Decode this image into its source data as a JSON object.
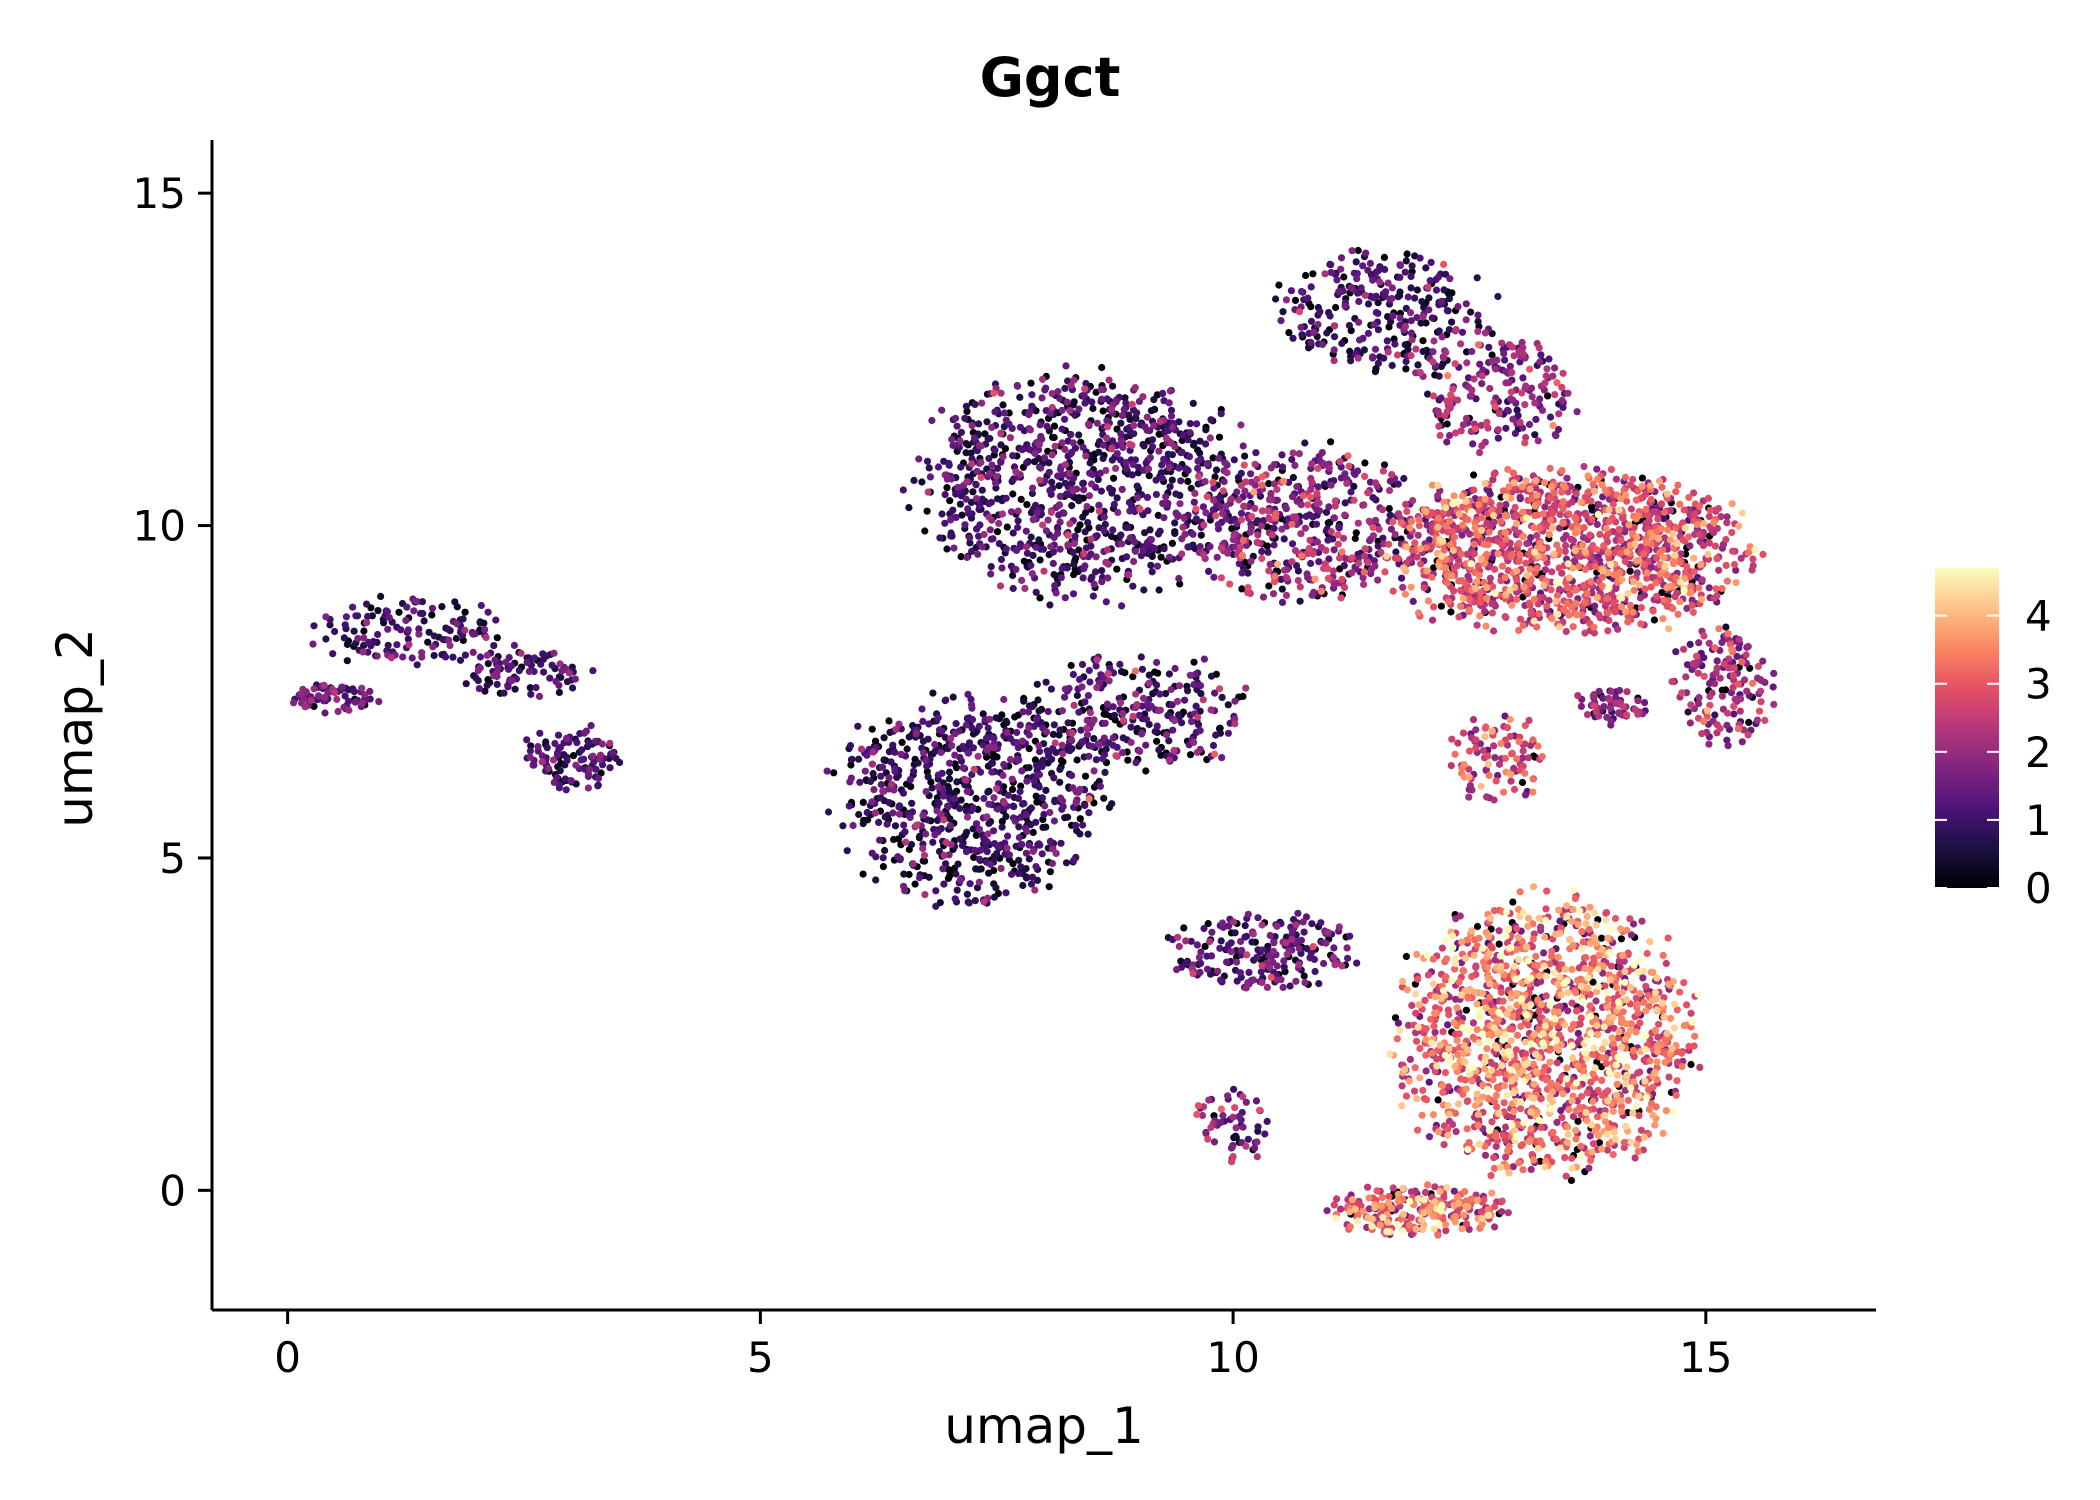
{
  "chart_data": {
    "type": "scatter",
    "title": "Ggct",
    "xlabel": "umap_1",
    "ylabel": "umap_2",
    "xlim": [
      -0.8,
      16.8
    ],
    "ylim": [
      -1.8,
      15.8
    ],
    "xticks": [
      0,
      5,
      10,
      15
    ],
    "yticks": [
      0,
      5,
      10,
      15
    ],
    "grid": false,
    "legend_position": "right",
    "colorbar": {
      "min": 0,
      "max": 4.7,
      "ticks": [
        0,
        1,
        2,
        3,
        4
      ],
      "colormap": "magma",
      "colors": [
        "#000004",
        "#1c1044",
        "#4f127b",
        "#812581",
        "#b5367a",
        "#e55064",
        "#fb8761",
        "#fec287",
        "#fcfdbf"
      ]
    },
    "clusters": [
      {
        "name": "left strip",
        "cx": 1.3,
        "cy": 8.4,
        "rx": 1.0,
        "ry": 0.55,
        "n": 140,
        "mean": 1.0,
        "sd": 0.55
      },
      {
        "name": "left tail",
        "cx": 0.5,
        "cy": 7.4,
        "rx": 0.45,
        "ry": 0.25,
        "n": 70,
        "mean": 1.4,
        "sd": 0.5
      },
      {
        "name": "left lobe",
        "cx": 3.0,
        "cy": 6.5,
        "rx": 0.55,
        "ry": 0.5,
        "n": 110,
        "mean": 1.0,
        "sd": 0.5
      },
      {
        "name": "left bridge",
        "cx": 2.5,
        "cy": 7.8,
        "rx": 0.7,
        "ry": 0.4,
        "n": 90,
        "mean": 1.0,
        "sd": 0.5
      },
      {
        "name": "middle lower",
        "cx": 7.2,
        "cy": 5.9,
        "rx": 1.45,
        "ry": 1.55,
        "n": 750,
        "mean": 0.8,
        "sd": 0.65
      },
      {
        "name": "middle bridge",
        "cx": 9.0,
        "cy": 7.2,
        "rx": 1.2,
        "ry": 0.9,
        "n": 280,
        "mean": 1.2,
        "sd": 0.7
      },
      {
        "name": "upper middle",
        "cx": 8.4,
        "cy": 10.6,
        "rx": 1.8,
        "ry": 1.7,
        "n": 1000,
        "mean": 1.0,
        "sd": 0.65
      },
      {
        "name": "upper transition",
        "cx": 10.8,
        "cy": 10.0,
        "rx": 1.2,
        "ry": 1.2,
        "n": 450,
        "mean": 1.7,
        "sd": 0.8
      },
      {
        "name": "top cap",
        "cx": 11.6,
        "cy": 13.2,
        "rx": 1.2,
        "ry": 0.9,
        "n": 280,
        "mean": 1.0,
        "sd": 0.6
      },
      {
        "name": "upper right arc",
        "cx": 12.8,
        "cy": 12.0,
        "rx": 0.9,
        "ry": 0.9,
        "n": 200,
        "mean": 1.8,
        "sd": 0.7
      },
      {
        "name": "right dense",
        "cx": 13.5,
        "cy": 9.6,
        "rx": 2.0,
        "ry": 1.25,
        "n": 1400,
        "mean": 2.7,
        "sd": 0.75
      },
      {
        "name": "right edge",
        "cx": 15.2,
        "cy": 7.6,
        "rx": 0.55,
        "ry": 0.9,
        "n": 150,
        "mean": 2.0,
        "sd": 0.6
      },
      {
        "name": "right knob",
        "cx": 14.0,
        "cy": 7.3,
        "rx": 0.4,
        "ry": 0.3,
        "n": 60,
        "mean": 1.8,
        "sd": 0.5
      },
      {
        "name": "junction",
        "cx": 12.8,
        "cy": 6.5,
        "rx": 0.5,
        "ry": 0.7,
        "n": 100,
        "mean": 2.6,
        "sd": 0.7
      },
      {
        "name": "lower left arm",
        "cx": 10.3,
        "cy": 3.6,
        "rx": 1.0,
        "ry": 0.6,
        "n": 220,
        "mean": 1.3,
        "sd": 0.6
      },
      {
        "name": "lower arm tail",
        "cx": 10.0,
        "cy": 1.0,
        "rx": 0.4,
        "ry": 0.6,
        "n": 60,
        "mean": 1.6,
        "sd": 0.6
      },
      {
        "name": "lower right",
        "cx": 13.3,
        "cy": 2.3,
        "rx": 1.6,
        "ry": 2.1,
        "n": 1500,
        "mean": 3.2,
        "sd": 0.85
      },
      {
        "name": "lower bottom",
        "cx": 12.0,
        "cy": -0.3,
        "rx": 1.0,
        "ry": 0.4,
        "n": 250,
        "mean": 3.0,
        "sd": 0.8
      }
    ]
  }
}
